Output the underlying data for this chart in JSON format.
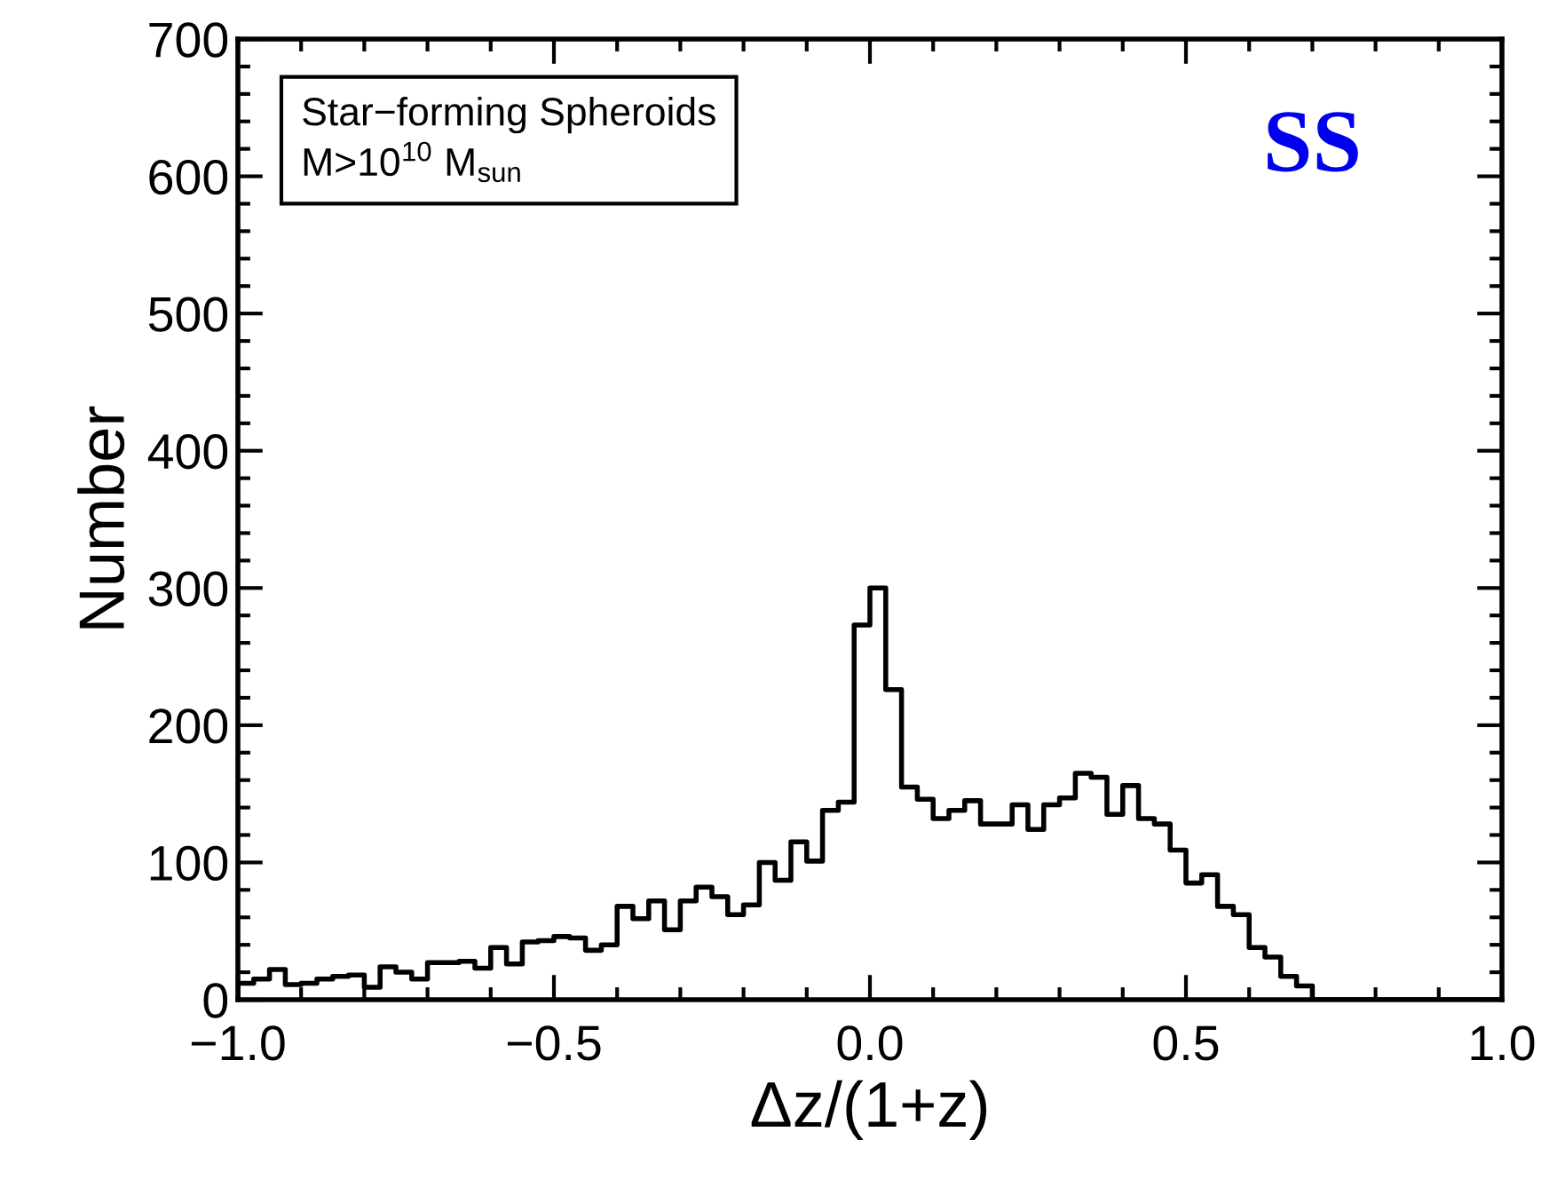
{
  "chart_data": {
    "type": "histogram",
    "xlabel": "Δz/(1+z)",
    "ylabel": "Number",
    "bins": [
      -1.0,
      -0.975,
      -0.95,
      -0.925,
      -0.9,
      -0.875,
      -0.85,
      -0.825,
      -0.8,
      -0.775,
      -0.75,
      -0.725,
      -0.7,
      -0.675,
      -0.65,
      -0.625,
      -0.6,
      -0.575,
      -0.55,
      -0.525,
      -0.5,
      -0.475,
      -0.45,
      -0.425,
      -0.4,
      -0.375,
      -0.35,
      -0.325,
      -0.3,
      -0.275,
      -0.25,
      -0.225,
      -0.2,
      -0.175,
      -0.15,
      -0.125,
      -0.1,
      -0.075,
      -0.05,
      -0.025,
      0.0,
      0.025,
      0.05,
      0.075,
      0.1,
      0.125,
      0.15,
      0.175,
      0.2,
      0.225,
      0.25,
      0.275,
      0.3,
      0.325,
      0.35,
      0.375,
      0.4,
      0.425,
      0.45,
      0.475,
      0.5,
      0.525,
      0.55,
      0.575,
      0.6,
      0.625,
      0.65,
      0.675,
      0.7,
      0.725,
      0.75,
      0.775,
      0.8,
      0.825,
      0.85,
      0.875,
      0.9,
      0.925,
      0.95,
      0.975,
      1.0
    ],
    "values": [
      12,
      15,
      22,
      11,
      12,
      15,
      17,
      18,
      9,
      24,
      20,
      15,
      27,
      27,
      28,
      23,
      38,
      26,
      42,
      43,
      46,
      45,
      36,
      40,
      68,
      59,
      72,
      51,
      72,
      82,
      75,
      62,
      69,
      100,
      87,
      115,
      101,
      138,
      144,
      273,
      300,
      226,
      155,
      146,
      132,
      138,
      145,
      128,
      128,
      142,
      124,
      142,
      147,
      165,
      162,
      135,
      156,
      132,
      128,
      109,
      85,
      91,
      68,
      62,
      38,
      31,
      17,
      10,
      0,
      0,
      0,
      0,
      0,
      0,
      0,
      0,
      0,
      0,
      0,
      0
    ],
    "color": "#000000",
    "xlim": [
      -1.0,
      1.0
    ],
    "xticks": [
      {
        "value": -1.0,
        "label": "−1.0"
      },
      {
        "value": -0.5,
        "label": "−0.5"
      },
      {
        "value": 0.0,
        "label": "0.0"
      },
      {
        "value": 0.5,
        "label": "0.5"
      },
      {
        "value": 1.0,
        "label": "1.0"
      }
    ],
    "ylim": [
      0,
      700
    ],
    "yticks": [
      0,
      100,
      200,
      300,
      400,
      500,
      600,
      700
    ],
    "grid": false,
    "annotations": [
      "Star−forming Spheroids",
      "M>10$^{10}$ M$_{sun}$",
      "SS"
    ]
  }
}
